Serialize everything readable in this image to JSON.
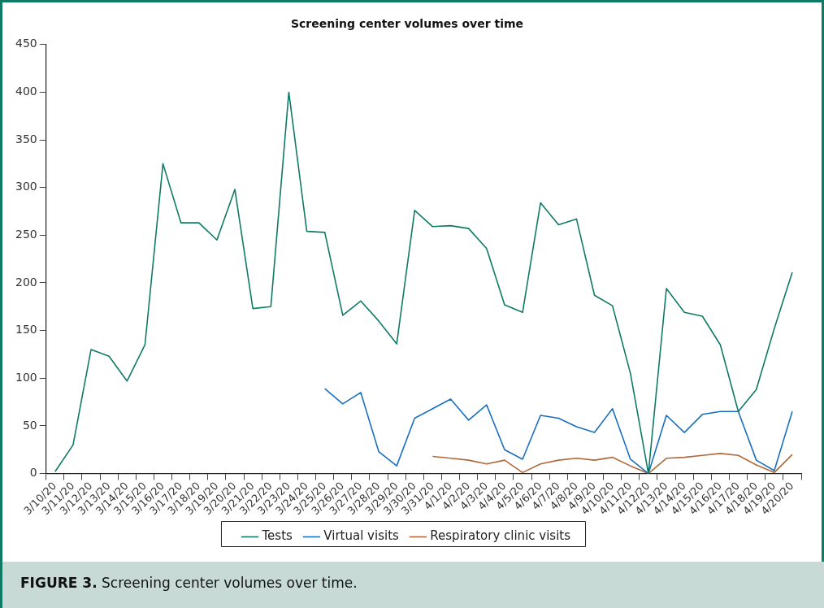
{
  "chart_data": {
    "type": "line",
    "title": "Screening center volumes over time",
    "categories": [
      "3/10/20",
      "3/11/20",
      "3/12/20",
      "3/13/20",
      "3/14/20",
      "3/15/20",
      "3/16/20",
      "3/17/20",
      "3/18/20",
      "3/19/20",
      "3/20/20",
      "3/21/20",
      "3/22/20",
      "3/23/20",
      "3/24/20",
      "3/25/20",
      "3/26/20",
      "3/27/20",
      "3/28/20",
      "3/29/20",
      "3/30/20",
      "3/31/20",
      "4/1/20",
      "4/2/20",
      "4/3/20",
      "4/4/20",
      "4/5/20",
      "4/6/20",
      "4/7/20",
      "4/8/20",
      "4/9/20",
      "4/10/20",
      "4/11/20",
      "4/12/20",
      "4/13/20",
      "4/14/20",
      "4/15/20",
      "4/16/20",
      "4/17/20",
      "4/18/20",
      "4/19/20",
      "4/20/20"
    ],
    "series": [
      {
        "name": "Tests",
        "color": "#0f7a66",
        "values": [
          2,
          30,
          130,
          123,
          97,
          135,
          325,
          263,
          263,
          245,
          298,
          173,
          175,
          400,
          254,
          253,
          166,
          181,
          160,
          136,
          276,
          259,
          260,
          257,
          236,
          177,
          169,
          284,
          261,
          267,
          187,
          176,
          105,
          0,
          194,
          169,
          165,
          135,
          65,
          88,
          152,
          211
        ]
      },
      {
        "name": "Virtual visits",
        "color": "#1a6fbf",
        "values": [
          null,
          null,
          null,
          null,
          null,
          null,
          null,
          null,
          null,
          null,
          null,
          null,
          null,
          null,
          null,
          89,
          73,
          85,
          23,
          8,
          58,
          68,
          78,
          56,
          72,
          25,
          15,
          61,
          58,
          49,
          43,
          68,
          15,
          0,
          61,
          43,
          62,
          65,
          65,
          14,
          3,
          65
        ]
      },
      {
        "name": "Respiratory clinic visits",
        "color": "#b0693a",
        "values": [
          null,
          null,
          null,
          null,
          null,
          null,
          null,
          null,
          null,
          null,
          null,
          null,
          null,
          null,
          null,
          null,
          null,
          null,
          null,
          null,
          null,
          18,
          16,
          14,
          10,
          14,
          1,
          10,
          14,
          16,
          14,
          17,
          8,
          0,
          16,
          17,
          19,
          21,
          19,
          9,
          1,
          20
        ]
      }
    ],
    "ylim": [
      0,
      450
    ],
    "yticks": [
      0,
      50,
      100,
      150,
      200,
      250,
      300,
      350,
      400,
      450
    ],
    "grid": false,
    "legend": "bottom",
    "marker": "none",
    "line_style": "solid",
    "annotations": [
      "FIGURE 3. Screening center volumes over time."
    ]
  }
}
